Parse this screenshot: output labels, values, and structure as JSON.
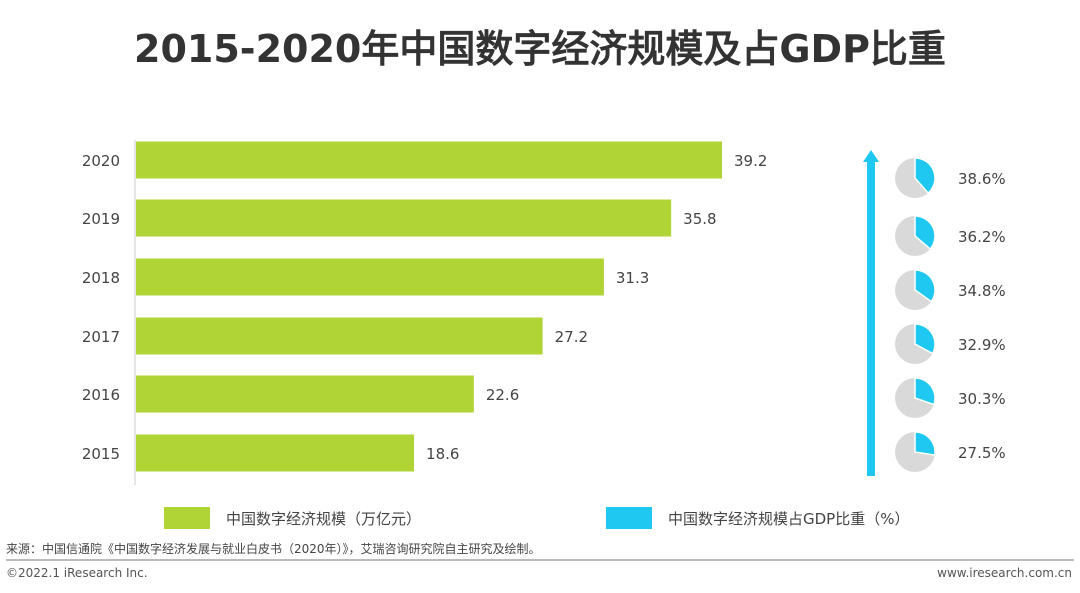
{
  "chart_data": {
    "title": "2015-2020年中国数字经济规模及占GDP比重",
    "type": "bar",
    "orientation": "horizontal",
    "categories": [
      "2020",
      "2019",
      "2018",
      "2017",
      "2016",
      "2015"
    ],
    "series": [
      {
        "name": "中国数字经济规模（万亿元）",
        "values": [
          39.2,
          35.8,
          31.3,
          27.2,
          22.6,
          18.6
        ],
        "color": "#b0d335",
        "labels": [
          "39.2",
          "35.8",
          "31.3",
          "27.2",
          "22.6",
          "18.6"
        ]
      },
      {
        "name": "中国数字经济规模占GDP比重（%）",
        "type": "pie-icons",
        "values": [
          38.6,
          36.2,
          34.8,
          32.9,
          30.3,
          27.5
        ],
        "color": "#1ec8f0",
        "labels": [
          "38.6%",
          "36.2%",
          "34.8%",
          "32.9%",
          "30.3%",
          "27.5%"
        ]
      }
    ],
    "xlim": [
      0,
      40
    ],
    "grid": false,
    "legend_placement": "bottom",
    "trend_arrow": "up",
    "pie_rest_color": "#d9d9d9"
  },
  "footer": {
    "source": "来源：中国信通院《中国数字经济发展与就业白皮书（2020年）》，艾瑞咨询研究院自主研究及绘制。",
    "copyright": "©2022.1 iResearch Inc.",
    "website": "www.iresearch.com.cn"
  }
}
